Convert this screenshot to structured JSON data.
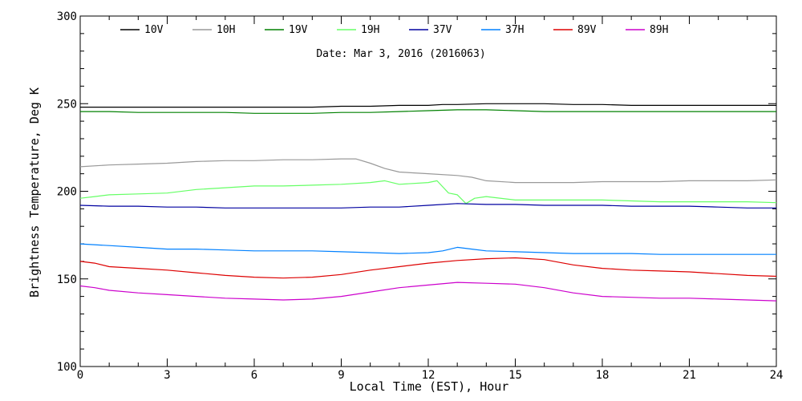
{
  "chart_data": {
    "type": "line",
    "title": "",
    "annotation": "Date: Mar  3, 2016 (2016063)",
    "xlabel": "Local Time (EST), Hour",
    "ylabel": "Brightness Temperature, Deg K",
    "xlim": [
      0,
      24
    ],
    "ylim": [
      100,
      300
    ],
    "xticks": [
      0,
      3,
      6,
      9,
      12,
      15,
      18,
      21,
      24
    ],
    "yticks": [
      100,
      150,
      200,
      250,
      300
    ],
    "grid": false,
    "legend_position": "top",
    "series": [
      {
        "name": "10V",
        "color": "#000000",
        "x": [
          0,
          1,
          2,
          3,
          4,
          5,
          6,
          7,
          8,
          9,
          10,
          11,
          12,
          12.5,
          13,
          14,
          15,
          16,
          17,
          18,
          19,
          20,
          21,
          22,
          23,
          24
        ],
        "y": [
          248,
          248,
          248,
          248,
          248,
          248,
          248,
          248,
          248,
          248.5,
          248.5,
          249,
          249,
          249.5,
          249.5,
          250,
          250,
          250,
          249.5,
          249.5,
          249,
          249,
          249,
          249,
          249,
          249
        ]
      },
      {
        "name": "10H",
        "color": "#999999",
        "x": [
          0,
          1,
          2,
          3,
          4,
          5,
          6,
          7,
          8,
          9,
          9.5,
          10,
          10.5,
          11,
          12,
          13,
          13.5,
          14,
          15,
          16,
          17,
          18,
          19,
          20,
          21,
          22,
          23,
          24
        ],
        "y": [
          214,
          215,
          215.5,
          216,
          217,
          217.5,
          217.5,
          218,
          218,
          218.5,
          218.5,
          216,
          213,
          211,
          210,
          209,
          208,
          206,
          205,
          205,
          205,
          205.5,
          205.5,
          205.5,
          206,
          206,
          206,
          206.5
        ]
      },
      {
        "name": "19V",
        "color": "#008000",
        "x": [
          0,
          1,
          2,
          3,
          4,
          5,
          6,
          7,
          8,
          9,
          10,
          11,
          12,
          13,
          14,
          15,
          16,
          17,
          18,
          19,
          20,
          21,
          22,
          23,
          24
        ],
        "y": [
          245.5,
          245.5,
          245,
          245,
          245,
          245,
          244.5,
          244.5,
          244.5,
          245,
          245,
          245.5,
          246,
          246.5,
          246.5,
          246,
          245.5,
          245.5,
          245.5,
          245.5,
          245.5,
          245.5,
          245.5,
          245.5,
          245.5
        ]
      },
      {
        "name": "19H",
        "color": "#66ff66",
        "x": [
          0,
          0.5,
          1,
          2,
          3,
          4,
          5,
          6,
          7,
          8,
          9,
          10,
          10.5,
          11,
          12,
          12.3,
          12.7,
          13,
          13.3,
          13.6,
          14,
          15,
          16,
          17,
          18,
          19,
          20,
          21,
          22,
          23,
          24
        ],
        "y": [
          196,
          197,
          198,
          198.5,
          199,
          201,
          202,
          203,
          203,
          203.5,
          204,
          205,
          206,
          204,
          205,
          206,
          199,
          198,
          193,
          196,
          197,
          195,
          195,
          195,
          195,
          194.5,
          194,
          194,
          194,
          194,
          193.5
        ]
      },
      {
        "name": "37V",
        "color": "#0000a0",
        "x": [
          0,
          1,
          2,
          3,
          4,
          5,
          6,
          7,
          8,
          9,
          10,
          11,
          12,
          13,
          14,
          15,
          16,
          17,
          18,
          19,
          20,
          21,
          22,
          23,
          24
        ],
        "y": [
          192,
          191.5,
          191.5,
          191,
          191,
          190.5,
          190.5,
          190.5,
          190.5,
          190.5,
          191,
          191,
          192,
          193,
          192.5,
          192.5,
          192,
          192,
          192,
          191.5,
          191.5,
          191.5,
          191,
          190.5,
          190.5
        ]
      },
      {
        "name": "37H",
        "color": "#0080ff",
        "x": [
          0,
          1,
          2,
          3,
          4,
          5,
          6,
          7,
          8,
          9,
          10,
          11,
          12,
          12.5,
          13,
          13.5,
          14,
          15,
          16,
          17,
          18,
          19,
          20,
          21,
          22,
          23,
          24
        ],
        "y": [
          170,
          169,
          168,
          167,
          167,
          166.5,
          166,
          166,
          166,
          165.5,
          165,
          164.5,
          165,
          166,
          168,
          167,
          166,
          165.5,
          165,
          164.5,
          164.5,
          164.5,
          164,
          164,
          164,
          164,
          164
        ]
      },
      {
        "name": "89V",
        "color": "#dd0000",
        "x": [
          0,
          0.5,
          1,
          2,
          3,
          4,
          5,
          6,
          7,
          8,
          9,
          10,
          11,
          12,
          13,
          14,
          15,
          16,
          17,
          18,
          19,
          20,
          21,
          22,
          23,
          24
        ],
        "y": [
          160,
          159,
          157,
          156,
          155,
          153.5,
          152,
          151,
          150.5,
          151,
          152.5,
          155,
          157,
          159,
          160.5,
          161.5,
          162,
          161,
          158,
          156,
          155,
          154.5,
          154,
          153,
          152,
          151.5
        ]
      },
      {
        "name": "89H",
        "color": "#cc00cc",
        "x": [
          0,
          0.5,
          1,
          2,
          3,
          4,
          5,
          6,
          7,
          8,
          9,
          10,
          11,
          12,
          13,
          14,
          15,
          16,
          17,
          18,
          19,
          20,
          21,
          22,
          23,
          24
        ],
        "y": [
          146,
          145,
          143.5,
          142,
          141,
          140,
          139,
          138.5,
          138,
          138.5,
          140,
          142.5,
          145,
          146.5,
          148,
          147.5,
          147,
          145,
          142,
          140,
          139.5,
          139,
          139,
          138.5,
          138,
          137.5
        ]
      }
    ]
  }
}
